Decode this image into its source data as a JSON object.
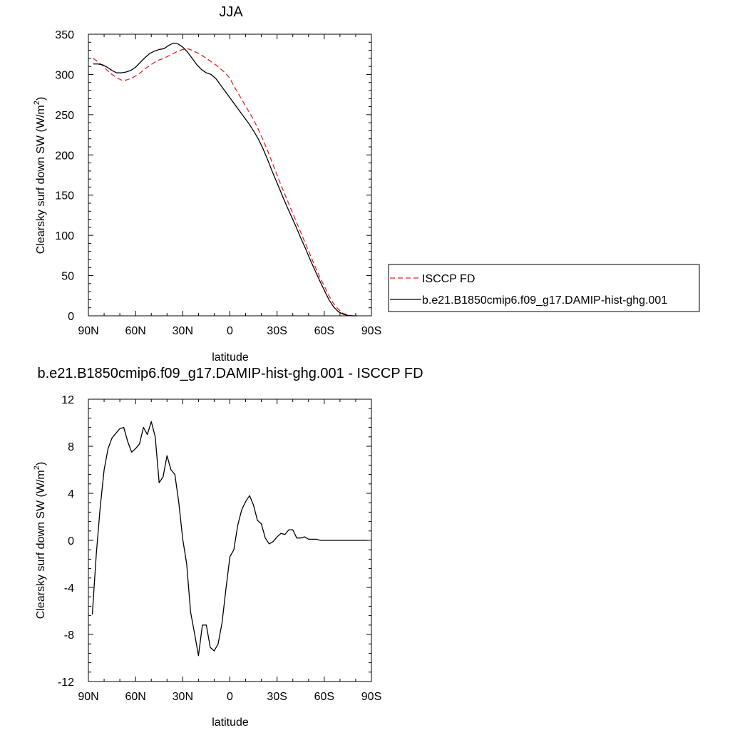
{
  "chart_data": [
    {
      "type": "line",
      "title": "JJA",
      "xlabel": "latitude",
      "ylabel": "Clearsky surf down SW (W/m",
      "ylabel_sup": "2",
      "ylabel_end": ")",
      "xlim": [
        -90,
        90
      ],
      "ylim": [
        0,
        350
      ],
      "xticks": [
        {
          "v": -90,
          "label": "90N"
        },
        {
          "v": -60,
          "label": "60N"
        },
        {
          "v": -30,
          "label": "30N"
        },
        {
          "v": 0,
          "label": "0"
        },
        {
          "v": 30,
          "label": "30S"
        },
        {
          "v": 60,
          "label": "60S"
        },
        {
          "v": 90,
          "label": "90S"
        }
      ],
      "yticks": [
        0,
        50,
        100,
        150,
        200,
        250,
        300,
        350
      ],
      "legend": {
        "position": "right"
      },
      "series": [
        {
          "name": "ISCCP FD",
          "color": "#e8211f",
          "dash": "dashed",
          "x": [
            -87,
            -84,
            -81,
            -78,
            -75,
            -72,
            -69,
            -66,
            -63,
            -60,
            -57,
            -54,
            -51,
            -48,
            -45,
            -42,
            -39,
            -36,
            -33,
            -30,
            -27,
            -24,
            -21,
            -18,
            -15,
            -12,
            -9,
            -6,
            -3,
            0,
            3,
            6,
            9,
            12,
            15,
            18,
            21,
            24,
            27,
            30,
            33,
            36,
            39,
            42,
            45,
            48,
            51,
            54,
            57,
            60,
            63,
            66,
            69,
            72,
            75,
            78,
            81
          ],
          "values": [
            320,
            316,
            311,
            305,
            300,
            296,
            293,
            293,
            295,
            298,
            302,
            307,
            311,
            315,
            318,
            320,
            323,
            326,
            329,
            331,
            332,
            330,
            327,
            324,
            320,
            316,
            312,
            307,
            302,
            295,
            284,
            274,
            264,
            254,
            244,
            232,
            219,
            205,
            190,
            175,
            160,
            146,
            132,
            118,
            104,
            90,
            76,
            62,
            49,
            37,
            25,
            15,
            8,
            3,
            1,
            0,
            0
          ]
        },
        {
          "name": "b.e21.B1850cmip6.f09_g17.DAMIP-hist-ghg.001",
          "color": "#000000",
          "dash": "solid",
          "x": [
            -87,
            -84,
            -81,
            -78,
            -75,
            -72,
            -69,
            -66,
            -63,
            -60,
            -57,
            -54,
            -51,
            -48,
            -45,
            -42,
            -39,
            -36,
            -33,
            -30,
            -27,
            -24,
            -21,
            -18,
            -15,
            -12,
            -9,
            -6,
            -3,
            0,
            3,
            6,
            9,
            12,
            15,
            18,
            21,
            24,
            27,
            30,
            33,
            36,
            39,
            42,
            45,
            48,
            51,
            54,
            57,
            60,
            63,
            66,
            69,
            72,
            75,
            78,
            81
          ],
          "values": [
            313,
            313,
            312,
            309,
            305,
            302,
            302,
            303,
            305,
            309,
            315,
            321,
            326,
            329,
            331,
            332,
            336,
            339,
            338,
            334,
            328,
            320,
            312,
            306,
            302,
            300,
            295,
            287,
            279,
            271,
            263,
            255,
            247,
            239,
            230,
            220,
            208,
            194,
            179,
            165,
            151,
            137,
            124,
            111,
            97,
            84,
            70,
            57,
            44,
            32,
            20,
            11,
            5,
            2,
            0.5,
            0,
            0
          ]
        }
      ]
    },
    {
      "type": "line",
      "title": "b.e21.B1850cmip6.f09_g17.DAMIP-hist-ghg.001 - ISCCP FD",
      "xlabel": "latitude",
      "ylabel": "Clearsky surf down SW (W/m",
      "ylabel_sup": "2",
      "ylabel_end": ")",
      "xlim": [
        -90,
        90
      ],
      "ylim": [
        -12,
        12
      ],
      "xticks": [
        {
          "v": -90,
          "label": "90N"
        },
        {
          "v": -60,
          "label": "60N"
        },
        {
          "v": -30,
          "label": "30N"
        },
        {
          "v": 0,
          "label": "0"
        },
        {
          "v": 30,
          "label": "30S"
        },
        {
          "v": 60,
          "label": "60S"
        },
        {
          "v": 90,
          "label": "90S"
        }
      ],
      "yticks": [
        -12,
        -8,
        -4,
        0,
        4,
        8,
        12
      ],
      "series": [
        {
          "color": "#000000",
          "dash": "solid",
          "x": [
            -87.5,
            -85,
            -82.5,
            -80,
            -77.5,
            -75,
            -72.5,
            -70,
            -67.5,
            -65,
            -62.5,
            -60,
            -57.5,
            -55,
            -52.5,
            -50,
            -47.5,
            -45,
            -42.5,
            -40,
            -37.5,
            -35,
            -32.5,
            -30,
            -27.5,
            -25,
            -22.5,
            -20,
            -17.5,
            -15,
            -12.5,
            -10,
            -7.5,
            -5,
            -2.5,
            0,
            2.5,
            5,
            7.5,
            10,
            12.5,
            15,
            17.5,
            20,
            22.5,
            25,
            27.5,
            30,
            32.5,
            35,
            37.5,
            40,
            42.5,
            45,
            47.5,
            50,
            52.5,
            55,
            57.5,
            60,
            62.5,
            65,
            67.5,
            70,
            72.5,
            75,
            77.5,
            80,
            82.5,
            85,
            87.5
          ],
          "values": [
            -6.3,
            -1.2,
            2.8,
            6.0,
            7.8,
            8.7,
            9.1,
            9.5,
            9.6,
            8.4,
            7.5,
            7.8,
            8.2,
            9.6,
            9.0,
            10.1,
            8.8,
            4.9,
            5.4,
            7.2,
            6.0,
            5.6,
            3.2,
            0.1,
            -2.0,
            -6.1,
            -7.9,
            -9.8,
            -7.2,
            -7.2,
            -9.1,
            -9.4,
            -8.8,
            -7.0,
            -4.1,
            -1.4,
            -0.8,
            1.3,
            2.6,
            3.3,
            3.8,
            3.0,
            1.7,
            1.4,
            0.2,
            -0.3,
            -0.1,
            0.3,
            0.6,
            0.5,
            0.9,
            0.9,
            0.2,
            0.2,
            0.3,
            0.1,
            0.1,
            0.1,
            0.0,
            0.0,
            0.0,
            0.0,
            0.0,
            0.0,
            0.0,
            0.0,
            0.0,
            0.0,
            0.0,
            0.0,
            0.0
          ]
        }
      ]
    }
  ]
}
